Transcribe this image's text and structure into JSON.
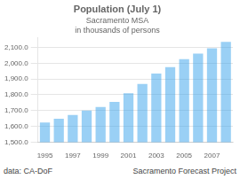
{
  "chart_data": {
    "type": "bar",
    "title": "Population (July 1)",
    "subtitle": [
      "Sacramento MSA",
      "in thousands of persons"
    ],
    "categories": [
      "1995",
      null,
      "1997",
      null,
      "1999",
      null,
      "2001",
      null,
      "2003",
      null,
      "2005",
      null,
      "2007",
      null
    ],
    "values": [
      1625,
      1648,
      1672,
      1700,
      1722,
      1755,
      1810,
      1868,
      1935,
      1975,
      2025,
      2060,
      2095,
      2135
    ],
    "ylim": [
      1500,
      2160
    ],
    "yticks": [
      {
        "value": 1500,
        "label": "1,500.0"
      },
      {
        "value": 1600,
        "label": "1,600.0"
      },
      {
        "value": 1700,
        "label": "1,700.0"
      },
      {
        "value": 1800,
        "label": "1,800.0"
      },
      {
        "value": 1900,
        "label": "1,900.0"
      },
      {
        "value": 2000,
        "label": "2,000.0"
      },
      {
        "value": 2100,
        "label": "2,100.0"
      }
    ],
    "grid": true,
    "annotations": [
      "data: CA-DoF",
      "Sacramento Forecast Project"
    ]
  }
}
